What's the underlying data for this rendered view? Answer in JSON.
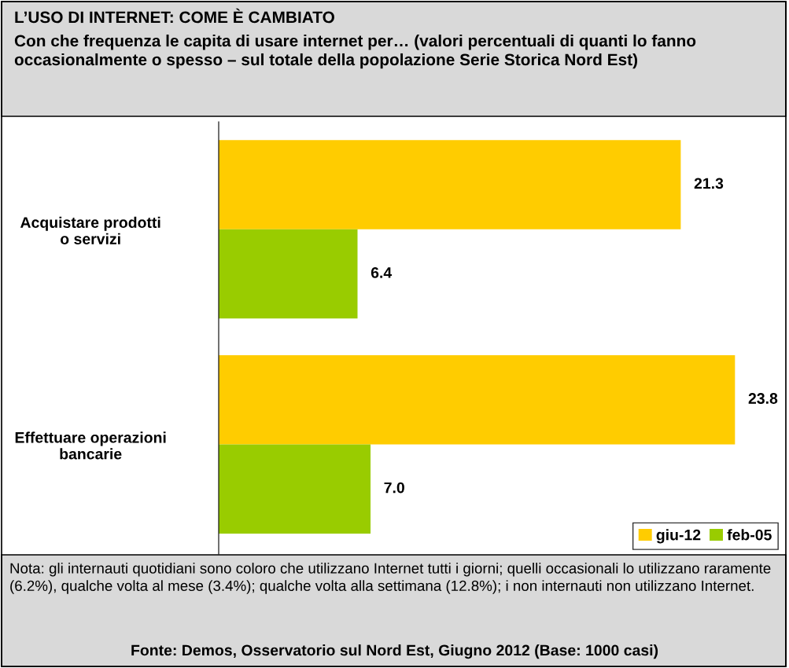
{
  "chart_data": {
    "type": "bar",
    "orientation": "horizontal",
    "title": "L’USO DI INTERNET: COME È CAMBIATO",
    "subtitle": "Con che frequenza le capita di usare internet per… (valori percentuali di quanti lo fanno occasionalmente o spesso – sul totale della popolazione Serie Storica Nord Est)",
    "categories": [
      "Acquistare prodotti\no servizi",
      "Effettuare operazioni\nbancarie"
    ],
    "series": [
      {
        "name": "giu-12",
        "color": "#ffcc00",
        "values": [
          21.3,
          23.8
        ],
        "value_labels": [
          "21.3",
          "23.8"
        ]
      },
      {
        "name": "feb-05",
        "color": "#99cc00",
        "values": [
          6.4,
          7.0
        ],
        "value_labels": [
          "6.4",
          "7.0"
        ]
      }
    ],
    "xlim": [
      0,
      26
    ],
    "tick_labels": "y",
    "legend": "bottom right",
    "grid": false,
    "annotations": [
      "Nota: gli internauti quotidiani sono coloro che utilizzano Internet tutti i giorni; quelli occasionali lo utilizzano raramente (6.2%), qualche volta al mese (3.4%); qualche volta alla settimana (12.8%); i non internauti non utilizzano Internet.",
      "Fonte: Demos, Osservatorio sul Nord Est, Giugno 2012 (Base: 1000 casi)"
    ]
  }
}
